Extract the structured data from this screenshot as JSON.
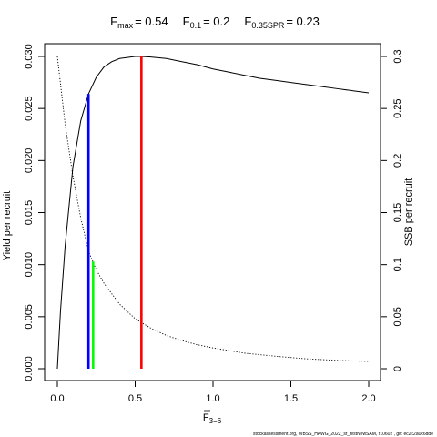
{
  "chart_data": {
    "type": "line",
    "title": {
      "fmax": {
        "base": "F",
        "sub": "max",
        "value": "= 0.54"
      },
      "f01": {
        "base": "F",
        "sub": "0.1",
        "value": "= 0.2"
      },
      "fspr": {
        "base": "F",
        "sub": "0.35SPR",
        "value": "= 0.23"
      }
    },
    "xlabel": {
      "base": "F",
      "sub": "3−6"
    },
    "ylabel": "Yield per recruit",
    "y2label": "SSB per recruit",
    "xlim": [
      0,
      2
    ],
    "ylim": [
      0,
      0.03
    ],
    "y2lim": [
      0,
      0.3
    ],
    "x_ticks": [
      "0.0",
      "0.5",
      "1.0",
      "1.5",
      "2.0"
    ],
    "y_ticks": [
      "0.000",
      "0.005",
      "0.010",
      "0.015",
      "0.020",
      "0.025",
      "0.030"
    ],
    "y2_ticks": [
      "0",
      "0.05",
      "0.1",
      "0.15",
      "0.2",
      "0.25",
      "0.3"
    ],
    "series": [
      {
        "axis": "left",
        "color": "#000000",
        "style": "solid",
        "x": [
          0,
          0.02,
          0.05,
          0.1,
          0.15,
          0.2,
          0.25,
          0.3,
          0.35,
          0.4,
          0.45,
          0.5,
          0.54,
          0.6,
          0.7,
          0.8,
          0.9,
          1.0,
          1.1,
          1.2,
          1.3,
          1.4,
          1.5,
          1.6,
          1.7,
          1.8,
          1.9,
          2.0
        ],
        "y": [
          0,
          0.0055,
          0.0118,
          0.0194,
          0.0238,
          0.0264,
          0.028,
          0.029,
          0.0295,
          0.0298,
          0.0299,
          0.03,
          0.03,
          0.02995,
          0.0298,
          0.0295,
          0.0292,
          0.0288,
          0.0285,
          0.0282,
          0.0279,
          0.0277,
          0.0275,
          0.0273,
          0.0271,
          0.0269,
          0.0267,
          0.0265
        ]
      },
      {
        "axis": "right",
        "color": "#000000",
        "style": "dotted",
        "x": [
          0,
          0.05,
          0.1,
          0.15,
          0.2,
          0.25,
          0.3,
          0.4,
          0.5,
          0.6,
          0.7,
          0.8,
          0.9,
          1.0,
          1.2,
          1.4,
          1.6,
          1.8,
          2.0
        ],
        "y": [
          0.3,
          0.235,
          0.185,
          0.145,
          0.113,
          0.095,
          0.082,
          0.062,
          0.048,
          0.039,
          0.032,
          0.027,
          0.023,
          0.02,
          0.015,
          0.012,
          0.0095,
          0.008,
          0.007
        ]
      }
    ],
    "reference_lines": [
      {
        "x": 0.54,
        "y_top": 0.03,
        "color": "#ff0000"
      },
      {
        "x": 0.2,
        "y_top": 0.0264,
        "color": "#0000ff"
      },
      {
        "x": 0.23,
        "y_top": 0.0103,
        "color": "#00ff00"
      }
    ],
    "footer": "stockassessment.org, WBSS_HAWG_2022_sf_testNewSAM, r10602 , git: ec2c2a0c6dde"
  }
}
